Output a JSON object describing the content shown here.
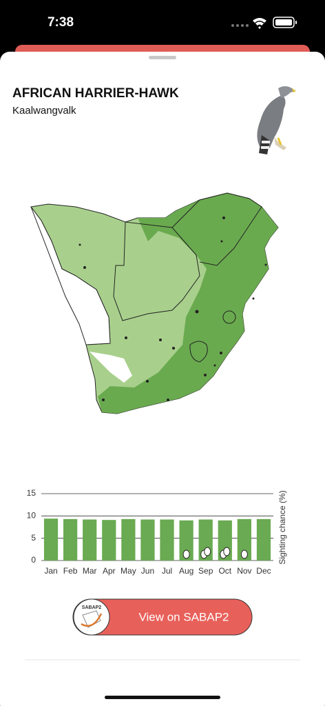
{
  "status": {
    "time": "7:38"
  },
  "header": {
    "title": "AFRICAN HARRIER-HAWK",
    "subtitle": "Kaalwangvalk"
  },
  "chart_data": {
    "type": "bar",
    "categories": [
      "Jan",
      "Feb",
      "Mar",
      "Apr",
      "May",
      "Jun",
      "Jul",
      "Aug",
      "Sep",
      "Oct",
      "Nov",
      "Dec"
    ],
    "values": [
      9.4,
      9.3,
      9.2,
      9.1,
      9.3,
      9.2,
      9.2,
      9.0,
      9.2,
      9.0,
      9.3,
      9.3
    ],
    "breeding_eggs": [
      0,
      0,
      0,
      0,
      0,
      0,
      0,
      1,
      2,
      2,
      1,
      0
    ],
    "color": "#6aaa52",
    "ylim": [
      0,
      15
    ],
    "yticks": [
      0,
      5,
      10,
      15
    ],
    "grid": true,
    "y_label": "Sighting chance (%)"
  },
  "button": {
    "label": "View on SABAP2",
    "logo_text": "SABAP2"
  }
}
